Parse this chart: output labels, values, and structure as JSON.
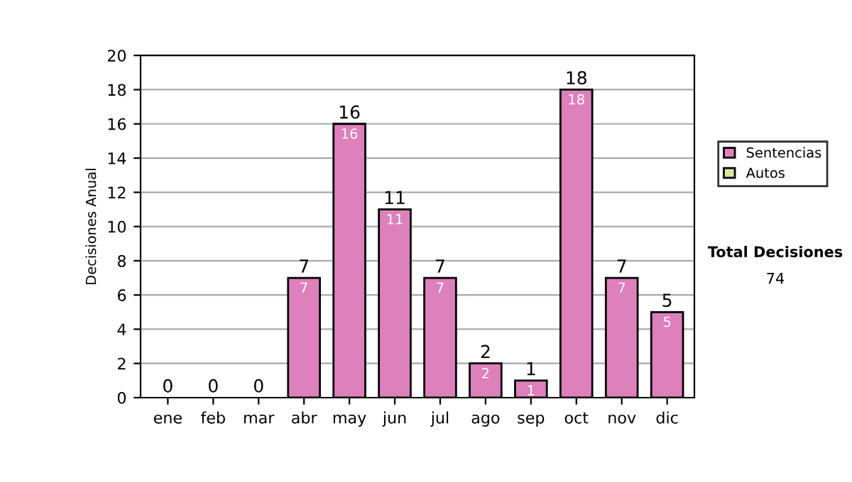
{
  "chart_data": {
    "type": "bar",
    "stacked": true,
    "ylabel": "Decisiones Anual",
    "categories": [
      "ene",
      "feb",
      "mar",
      "abr",
      "may",
      "jun",
      "jul",
      "ago",
      "sep",
      "oct",
      "nov",
      "dic"
    ],
    "series": [
      {
        "name": "Sentencias",
        "color": "#dd80bb",
        "values": [
          0,
          0,
          0,
          7,
          16,
          11,
          7,
          2,
          1,
          18,
          7,
          5
        ],
        "value_labels": [
          null,
          null,
          null,
          "7",
          "16",
          "11",
          "7",
          "2",
          "1",
          "18",
          "7",
          "5"
        ]
      },
      {
        "name": "Autos",
        "color": "#d6e6a0",
        "values": [
          0,
          0,
          0,
          0,
          0,
          0,
          0,
          0,
          0,
          0,
          0,
          0
        ]
      }
    ],
    "totals": [
      "0",
      "0",
      "0",
      "7",
      "16",
      "11",
      "7",
      "2",
      "1",
      "18",
      "7",
      "5"
    ],
    "ylim": [
      0,
      20
    ],
    "yticks": [
      0,
      2,
      4,
      6,
      8,
      10,
      12,
      14,
      16,
      18,
      20
    ],
    "grid": "y",
    "legend": "right",
    "annotations": [
      "Total Decisiones",
      "74"
    ]
  }
}
